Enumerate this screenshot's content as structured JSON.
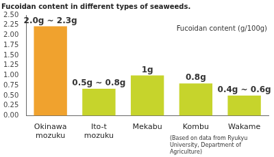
{
  "chart_data": {
    "type": "bar",
    "title": "Fucoidan content in different types of seaweeds.",
    "annotations": [
      "Fucoidan content (g/100g)",
      "(Based on data from Ryukyu University, Department of Agriculture)"
    ],
    "categories": [
      "Okinawa mozuku",
      "Ito-t mozuku",
      "Mekabu",
      "Kombu",
      "Wakame"
    ],
    "values": [
      2.22,
      0.67,
      1.0,
      0.8,
      0.5
    ],
    "value_labels": [
      "2.0g ~ 2.3g",
      "0.5g ~ 0.8g",
      "1g",
      "0.8g",
      "0.4g ~ 0.6g"
    ],
    "data_labels": true,
    "colors": [
      "#f0a22e",
      "#c6d42c",
      "#c6d42c",
      "#c6d42c",
      "#c6d42c"
    ],
    "ylim": [
      0,
      2.5
    ],
    "yticks": [
      {
        "value": 0,
        "label": "0.00"
      },
      {
        "value": 0.25,
        "label": "0.25"
      },
      {
        "value": 0.5,
        "label": "0.50"
      },
      {
        "value": 0.75,
        "label": "0.75"
      },
      {
        "value": 1,
        "label": "1.00"
      },
      {
        "value": 1.25,
        "label": "1.25"
      },
      {
        "value": 1.5,
        "label": "1.50"
      },
      {
        "value": 1.75,
        "label": "1.75"
      },
      {
        "value": 2,
        "label": "2.00"
      },
      {
        "value": 2.25,
        "label": "2.25"
      },
      {
        "value": 2.5,
        "label": "2.50"
      }
    ],
    "grid": false
  }
}
